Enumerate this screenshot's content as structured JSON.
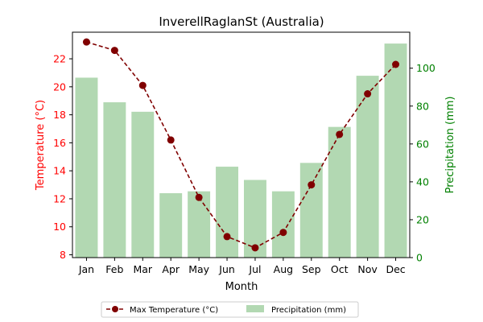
{
  "chart_data": {
    "type": "bar+line",
    "title": "InverellRaglanSt (Australia)",
    "xlabel": "Month",
    "categories": [
      "Jan",
      "Feb",
      "Mar",
      "Apr",
      "May",
      "Jun",
      "Jul",
      "Aug",
      "Sep",
      "Oct",
      "Nov",
      "Dec"
    ],
    "left_axis": {
      "label": "Temperature (°C)",
      "color": "#ff0000",
      "ylim": [
        7.8,
        23.9
      ],
      "ticks": [
        8,
        10,
        12,
        14,
        16,
        18,
        20,
        22
      ]
    },
    "right_axis": {
      "label": "Precipitation (mm)",
      "color": "#008000",
      "ylim": [
        0,
        119
      ],
      "ticks": [
        0,
        20,
        40,
        60,
        80,
        100
      ]
    },
    "series": [
      {
        "name": "Max Temperature (°C)",
        "kind": "line",
        "axis": "left",
        "color": "#800000",
        "marker": "circle",
        "line_style": "dashed",
        "values": [
          23.2,
          22.6,
          20.1,
          16.2,
          12.1,
          9.3,
          8.5,
          9.6,
          13.0,
          16.6,
          19.5,
          21.6
        ]
      },
      {
        "name": "Precipitation (mm)",
        "kind": "bar",
        "axis": "right",
        "color": "#b2d8b2",
        "values": [
          95,
          82,
          77,
          34,
          35,
          48,
          41,
          35,
          50,
          69,
          96,
          113
        ]
      }
    ],
    "legend": "bottom-center",
    "grid": false
  }
}
